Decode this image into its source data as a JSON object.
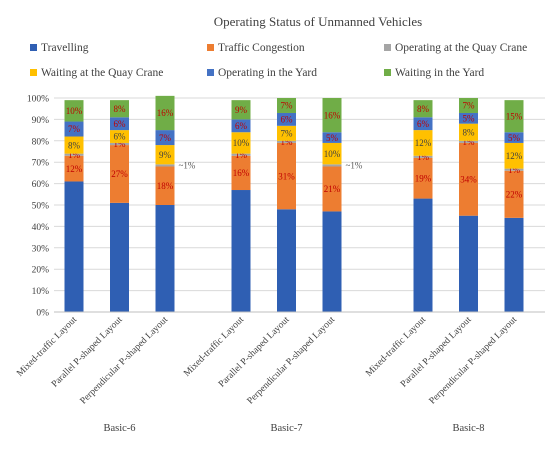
{
  "chart_data": {
    "type": "bar",
    "stacked": true,
    "title": "Operating Status of Unmanned Vehicles",
    "ylim": [
      0,
      100
    ],
    "y_ticks": [
      "0%",
      "10%",
      "20%",
      "30%",
      "40%",
      "50%",
      "60%",
      "70%",
      "80%",
      "90%",
      "100%"
    ],
    "legend_position": "top",
    "groups": [
      {
        "label": "Basic-6",
        "categories": [
          "Mixed-traffic Layout",
          "Parallel P-shaped Layout",
          "Perpendicular P-shaped Layout"
        ]
      },
      {
        "label": "Basic-7",
        "categories": [
          "Mixed-traffic Layout",
          "Parallel P-shaped Layout",
          "Perpendicular P-shaped Layout"
        ]
      },
      {
        "label": "Basic-8",
        "categories": [
          "Mixed-traffic Layout",
          "Parallel P-shaped Layout",
          "Perpendicular P-shaped Layout"
        ]
      }
    ],
    "series": [
      {
        "name": "Travelling",
        "color": "#2f5fb3",
        "values": [
          61,
          51,
          50,
          57,
          48,
          47,
          53,
          45,
          44
        ]
      },
      {
        "name": "Traffic Congestion",
        "color": "#ed7d31",
        "values": [
          12,
          27,
          18,
          16,
          31,
          21,
          19,
          34,
          22
        ]
      },
      {
        "name": "Operating at the Quay Crane",
        "color": "#a5a5a5",
        "values": [
          1,
          1,
          1,
          1,
          1,
          1,
          1,
          1,
          1
        ]
      },
      {
        "name": "Waiting at the Quay Crane",
        "color": "#ffc000",
        "values": [
          8,
          6,
          9,
          10,
          7,
          10,
          12,
          8,
          12
        ]
      },
      {
        "name": "Operating in the Yard",
        "color": "#4472c4",
        "values": [
          7,
          6,
          7,
          6,
          6,
          5,
          6,
          5,
          5
        ]
      },
      {
        "name": "Waiting in the Yard",
        "color": "#70ad47",
        "values": [
          10,
          8,
          16,
          9,
          7,
          16,
          8,
          7,
          15
        ]
      }
    ],
    "data_labels": [
      [
        "",
        "12%",
        "1%",
        "8%",
        "7%",
        "10%"
      ],
      [
        "",
        "27%",
        "1%",
        "6%",
        "6%",
        "8%"
      ],
      [
        "",
        "18%",
        "~1%",
        "9%",
        "7%",
        "16%"
      ],
      [
        "",
        "16%",
        "1%",
        "10%",
        "6%",
        "9%"
      ],
      [
        "",
        "31%",
        "1%",
        "7%",
        "6%",
        "7%"
      ],
      [
        "",
        "21%",
        "~1%",
        "10%",
        "5%",
        "16%"
      ],
      [
        "",
        "19%",
        "1%",
        "12%",
        "6%",
        "8%"
      ],
      [
        "",
        "34%",
        "1%",
        "8%",
        "5%",
        "7%"
      ],
      [
        "",
        "22%",
        "1%",
        "12%",
        "5%",
        "15%"
      ]
    ]
  }
}
